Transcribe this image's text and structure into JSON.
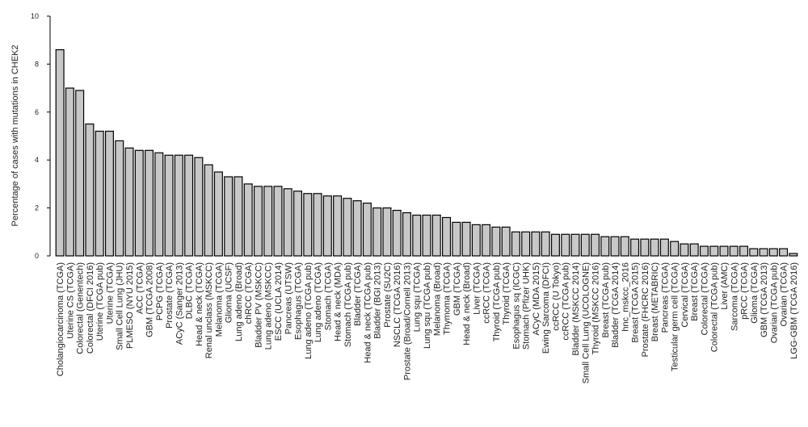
{
  "chart_data": {
    "type": "bar",
    "y_label": "Percentage of cases with mutations in CHEK2",
    "categories": [
      "Cholangiocarcinoma (TCGA)",
      "Uterine CS (TCGA)",
      "Colorectal (Genentech)",
      "Colorectal (DFCI 2016)",
      "Uterine (TCGA pub)",
      "Uterine (TCGA)",
      "Small Cell Lung (JHU)",
      "PLMESO (NYU 2015)",
      "ACC (TCGA)",
      "GBM (TCGA 2008)",
      "PCPG (TCGA)",
      "Prostate (TCGA)",
      "ACyC (Sanger 2013)",
      "DLBC (TCGA)",
      "Head & neck (TCGA)",
      "Renal unclass (MSKCC)",
      "Melanoma (TCGA)",
      "Glioma (UCSF)",
      "Lung adeno (Broad)",
      "chRCC (TCGA)",
      "Bladder PV (MSKCC)",
      "Lung adeno (MSKCC)",
      "ESCC (UCLA 2014)",
      "Pancreas (UTSW)",
      "Esophagus (TCGA)",
      "Lung adeno (TCGA pub)",
      "Lung adeno (TCGA)",
      "Stomach (TCGA)",
      "Head & neck (MDA)",
      "Stomach (TCGA pub)",
      "Bladder (TCGA)",
      "Head & neck (TCGA pub)",
      "Bladder (BGI 2013)",
      "Prostate (SU2C)",
      "NSCLC (TCGA 2016)",
      "Prostate (Broad/Cornell 2013)",
      "Lung squ (TCGA)",
      "Lung squ (TCGA pub)",
      "Melanoma (Broad)",
      "Thymoma (TCGA)",
      "GBM (TCGA)",
      "Head & neck (Broad)",
      "Liver (TCGA)",
      "ccRCC (TCGA)",
      "Thyroid (TCGA pub)",
      "Thyroid (TCGA)",
      "Esophagus sq (ICGC)",
      "Stomach (Pfizer UHK)",
      "ACyC (MDA 2015)",
      "Ewing Sarcoma (DFCI)",
      "ccRCC (U Tokyo)",
      "ccRCC (TCGA pub)",
      "Bladder (MSKCC 2014)",
      "Small Cell Lung (UCOLOGNE)",
      "Thyroid (MSKCC 2016)",
      "Breast (TCGA pub)",
      "Bladder (TCGA 2014)",
      "hnc_mskcc_2016",
      "Breast (TCGA 2015)",
      "Prostate (FHCRC 2016)",
      "Breast (METABRIC)",
      "Pancreas (TCGA)",
      "Testicular germ cell (TCGA)",
      "Cervical (TCGA)",
      "Breast (TCGA)",
      "Colorectal (TCGA)",
      "Colorectal (TCGA pub)",
      "Liver (AMC)",
      "Sarcoma (TCGA)",
      "pRCC (TCGA)",
      "Glioma (TCGA)",
      "GBM (TCGA 2013)",
      "Ovarian (TCGA pub)",
      "Ovarian (TCGA)",
      "LGG-GBM (TCGA 2016)"
    ],
    "values": [
      8.6,
      7.0,
      6.9,
      5.5,
      5.2,
      5.2,
      4.8,
      4.5,
      4.4,
      4.4,
      4.3,
      4.2,
      4.2,
      4.2,
      4.1,
      3.8,
      3.5,
      3.3,
      3.3,
      3.0,
      2.9,
      2.9,
      2.9,
      2.8,
      2.7,
      2.6,
      2.6,
      2.5,
      2.5,
      2.4,
      2.3,
      2.2,
      2.0,
      2.0,
      1.9,
      1.8,
      1.7,
      1.7,
      1.7,
      1.6,
      1.4,
      1.4,
      1.3,
      1.3,
      1.2,
      1.2,
      1.0,
      1.0,
      1.0,
      1.0,
      0.9,
      0.9,
      0.9,
      0.9,
      0.9,
      0.8,
      0.8,
      0.8,
      0.7,
      0.7,
      0.7,
      0.7,
      0.6,
      0.5,
      0.5,
      0.4,
      0.4,
      0.4,
      0.4,
      0.4,
      0.3,
      0.3,
      0.3,
      0.3,
      0.1
    ],
    "color": "#c8c8c8",
    "ylim": [
      0,
      10
    ],
    "yticks": [
      0,
      2,
      4,
      6,
      8,
      10
    ],
    "grid": false
  }
}
